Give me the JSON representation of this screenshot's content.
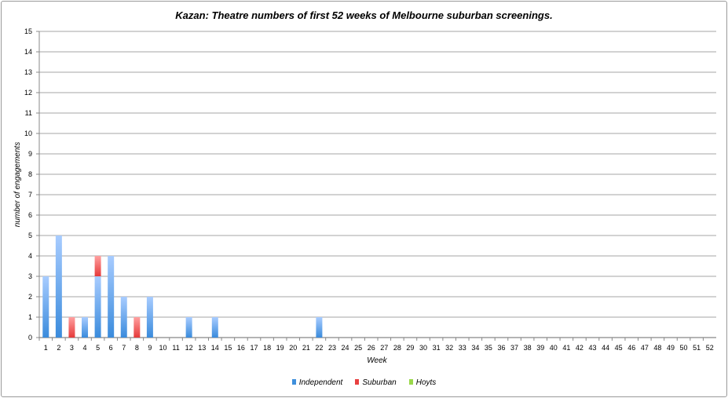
{
  "chart_data": {
    "type": "bar",
    "stacked": true,
    "title": "Kazan: Theatre numbers of first 52 weeks of Melbourne suburban screenings.",
    "xlabel": "Week",
    "ylabel": "number of engagements",
    "ylim": [
      0,
      15
    ],
    "yticks": [
      0,
      1,
      2,
      3,
      4,
      5,
      6,
      7,
      8,
      9,
      10,
      11,
      12,
      13,
      14,
      15
    ],
    "grid": true,
    "legend_position": "bottom",
    "categories": [
      "1",
      "2",
      "3",
      "4",
      "5",
      "6",
      "7",
      "8",
      "9",
      "10",
      "11",
      "12",
      "13",
      "14",
      "15",
      "16",
      "17",
      "18",
      "19",
      "20",
      "21",
      "22",
      "23",
      "24",
      "25",
      "26",
      "27",
      "28",
      "29",
      "30",
      "31",
      "32",
      "33",
      "34",
      "35",
      "36",
      "37",
      "38",
      "39",
      "40",
      "41",
      "42",
      "43",
      "44",
      "45",
      "46",
      "47",
      "48",
      "49",
      "50",
      "51",
      "52"
    ],
    "series": [
      {
        "name": "Independent",
        "color": "#3f8fdc",
        "values": [
          3,
          5,
          0,
          1,
          3,
          4,
          2,
          0,
          2,
          0,
          0,
          1,
          0,
          1,
          0,
          0,
          0,
          0,
          0,
          0,
          0,
          1,
          0,
          0,
          0,
          0,
          0,
          0,
          0,
          0,
          0,
          0,
          0,
          0,
          0,
          0,
          0,
          0,
          0,
          0,
          0,
          0,
          0,
          0,
          0,
          0,
          0,
          0,
          0,
          0,
          0,
          0
        ]
      },
      {
        "name": "Suburban",
        "color": "#e84040",
        "values": [
          0,
          0,
          1,
          0,
          1,
          0,
          0,
          1,
          0,
          0,
          0,
          0,
          0,
          0,
          0,
          0,
          0,
          0,
          0,
          0,
          0,
          0,
          0,
          0,
          0,
          0,
          0,
          0,
          0,
          0,
          0,
          0,
          0,
          0,
          0,
          0,
          0,
          0,
          0,
          0,
          0,
          0,
          0,
          0,
          0,
          0,
          0,
          0,
          0,
          0,
          0,
          0
        ]
      },
      {
        "name": "Hoyts",
        "color": "#9ad84a",
        "values": [
          0,
          0,
          0,
          0,
          0,
          0,
          0,
          0,
          0,
          0,
          0,
          0,
          0,
          0,
          0,
          0,
          0,
          0,
          0,
          0,
          0,
          0,
          0,
          0,
          0,
          0,
          0,
          0,
          0,
          0,
          0,
          0,
          0,
          0,
          0,
          0,
          0,
          0,
          0,
          0,
          0,
          0,
          0,
          0,
          0,
          0,
          0,
          0,
          0,
          0,
          0,
          0
        ]
      }
    ]
  }
}
